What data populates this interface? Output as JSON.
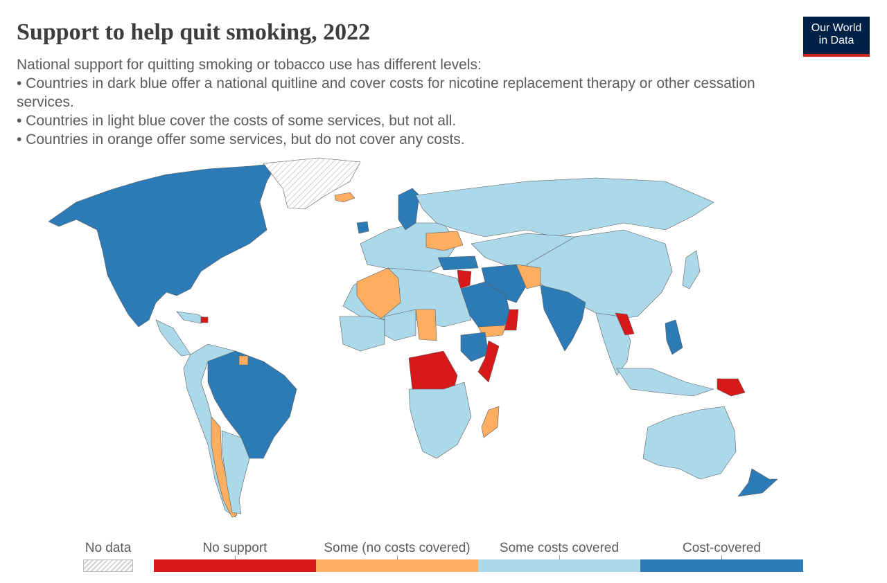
{
  "title": "Support to help quit smoking, 2022",
  "subtitle": [
    "National support for quitting smoking or tobacco use has different levels:",
    "• Countries in dark blue offer a national quitline and cover costs for nicotine replacement therapy or other cessation services.",
    "• Countries in light blue cover the costs of some services, but not all.",
    "• Countries in orange offer some services, but do not cover any costs."
  ],
  "logo": {
    "line1": "Our World",
    "line2": "in Data"
  },
  "colors": {
    "no_data": "#e6e6e6",
    "no_support": "#d7191c",
    "some_no_costs": "#fdae61",
    "some_costs": "#abd9e9",
    "cost_covered": "#2c7bb6",
    "border": "#5a5a5a"
  },
  "legend": [
    {
      "label": "No data",
      "key": "no_data"
    },
    {
      "label": "No support",
      "key": "no_support"
    },
    {
      "label": "Some (no costs covered)",
      "key": "some_no_costs"
    },
    {
      "label": "Some costs covered",
      "key": "some_costs"
    },
    {
      "label": "Cost-covered",
      "key": "cost_covered"
    }
  ],
  "chart_data": {
    "type": "choropleth",
    "categories": [
      "No data",
      "No support",
      "Some (no costs covered)",
      "Some costs covered",
      "Cost-covered"
    ],
    "regions": [
      {
        "name": "Canada",
        "category": "Cost-covered"
      },
      {
        "name": "United States",
        "category": "Cost-covered"
      },
      {
        "name": "Mexico",
        "category": "Cost-covered"
      },
      {
        "name": "Greenland",
        "category": "No data"
      },
      {
        "name": "Brazil",
        "category": "Cost-covered"
      },
      {
        "name": "Chile",
        "category": "Some (no costs covered)"
      },
      {
        "name": "Argentina",
        "category": "Some costs covered"
      },
      {
        "name": "Russia",
        "category": "Some costs covered"
      },
      {
        "name": "China",
        "category": "Some costs covered"
      },
      {
        "name": "India",
        "category": "Cost-covered"
      },
      {
        "name": "Iran",
        "category": "Cost-covered"
      },
      {
        "name": "Saudi Arabia",
        "category": "Cost-covered"
      },
      {
        "name": "Turkey",
        "category": "Cost-covered"
      },
      {
        "name": "Afghanistan",
        "category": "Some (no costs covered)"
      },
      {
        "name": "Algeria",
        "category": "Some (no costs covered)"
      },
      {
        "name": "Niger",
        "category": "No support"
      },
      {
        "name": "Chad",
        "category": "No support"
      },
      {
        "name": "Sudan",
        "category": "Some (no costs covered)"
      },
      {
        "name": "Ethiopia",
        "category": "Cost-covered"
      },
      {
        "name": "Somalia",
        "category": "No support"
      },
      {
        "name": "DR Congo",
        "category": "No support"
      },
      {
        "name": "Madagascar",
        "category": "Some (no costs covered)"
      },
      {
        "name": "South Africa",
        "category": "Some costs covered"
      },
      {
        "name": "Australia",
        "category": "Some costs covered"
      },
      {
        "name": "New Zealand",
        "category": "Cost-covered"
      },
      {
        "name": "Papua New Guinea",
        "category": "No support"
      },
      {
        "name": "Philippines",
        "category": "Cost-covered"
      },
      {
        "name": "Sweden",
        "category": "Cost-covered"
      },
      {
        "name": "Ukraine",
        "category": "Some (no costs covered)"
      },
      {
        "name": "Syria",
        "category": "No support"
      },
      {
        "name": "Yemen",
        "category": "Some (no costs covered)"
      },
      {
        "name": "Oman",
        "category": "No support"
      },
      {
        "name": "Laos",
        "category": "No support"
      },
      {
        "name": "Japan",
        "category": "Some costs covered"
      },
      {
        "name": "Indonesia",
        "category": "Some costs covered"
      }
    ]
  }
}
